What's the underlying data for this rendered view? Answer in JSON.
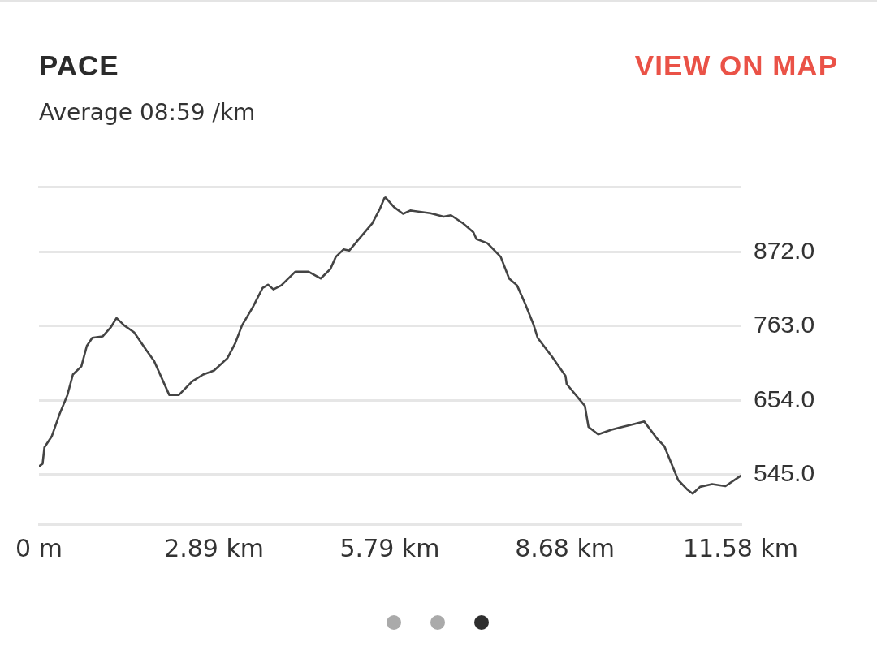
{
  "chart_data": {
    "type": "line",
    "title": "PACE",
    "subtitle": "Average 08:59 /km",
    "annotations": [
      "VIEW ON MAP"
    ],
    "x": [
      0,
      0.06,
      0.09,
      0.21,
      0.34,
      0.47,
      0.56,
      0.7,
      0.79,
      0.88,
      1.05,
      1.19,
      1.28,
      1.41,
      1.57,
      1.77,
      1.9,
      2.15,
      2.31,
      2.53,
      2.71,
      2.89,
      3.11,
      3.24,
      3.35,
      3.53,
      3.69,
      3.78,
      3.87,
      4.0,
      4.23,
      4.45,
      4.65,
      4.81,
      4.9,
      5.03,
      5.12,
      5.3,
      5.5,
      5.63,
      5.7,
      5.72,
      5.86,
      6.01,
      6.13,
      6.46,
      6.68,
      6.8,
      7.0,
      7.17,
      7.22,
      7.4,
      7.62,
      7.76,
      7.89,
      8.02,
      8.16,
      8.23,
      8.47,
      8.69,
      8.71,
      9.01,
      9.07,
      9.23,
      9.45,
      9.81,
      9.99,
      10.21,
      10.32,
      10.55,
      10.7,
      10.79,
      10.91,
      11.11,
      11.33,
      11.58
    ],
    "series": [
      {
        "color": "#444444",
        "values": [
          557,
          561,
          585,
          601,
          634,
          662,
          692,
          704,
          734,
          746,
          748,
          762,
          775,
          764,
          754,
          728,
          712,
          662,
          662,
          682,
          692,
          698,
          716,
          738,
          764,
          791,
          819,
          824,
          817,
          823,
          843,
          843,
          833,
          847,
          865,
          876,
          874,
          893,
          914,
          936,
          951,
          952,
          938,
          928,
          933,
          929,
          924,
          926,
          914,
          901,
          891,
          885,
          865,
          833,
          823,
          797,
          766,
          746,
          718,
          690,
          678,
          646,
          615,
          604,
          611,
          619,
          623,
          597,
          587,
          537,
          523,
          517,
          527,
          531,
          528,
          543
        ]
      }
    ],
    "xlim": [
      0,
      11.58
    ],
    "xticks": [
      {
        "value": 0,
        "label": "0 m"
      },
      {
        "value": 2.89,
        "label": "2.89 km"
      },
      {
        "value": 5.79,
        "label": "5.79 km"
      },
      {
        "value": 8.68,
        "label": "8.68 km"
      },
      {
        "value": 11.58,
        "label": "11.58 km"
      }
    ],
    "yticks": [
      {
        "value": 545,
        "label": "545.0"
      },
      {
        "value": 654,
        "label": "654.0"
      },
      {
        "value": 763,
        "label": "763.0"
      },
      {
        "value": 872,
        "label": "872.0"
      }
    ],
    "ylim": [
      472,
      968
    ],
    "grid": "y",
    "legend": false,
    "marker": "none",
    "line_style": "solid"
  }
}
